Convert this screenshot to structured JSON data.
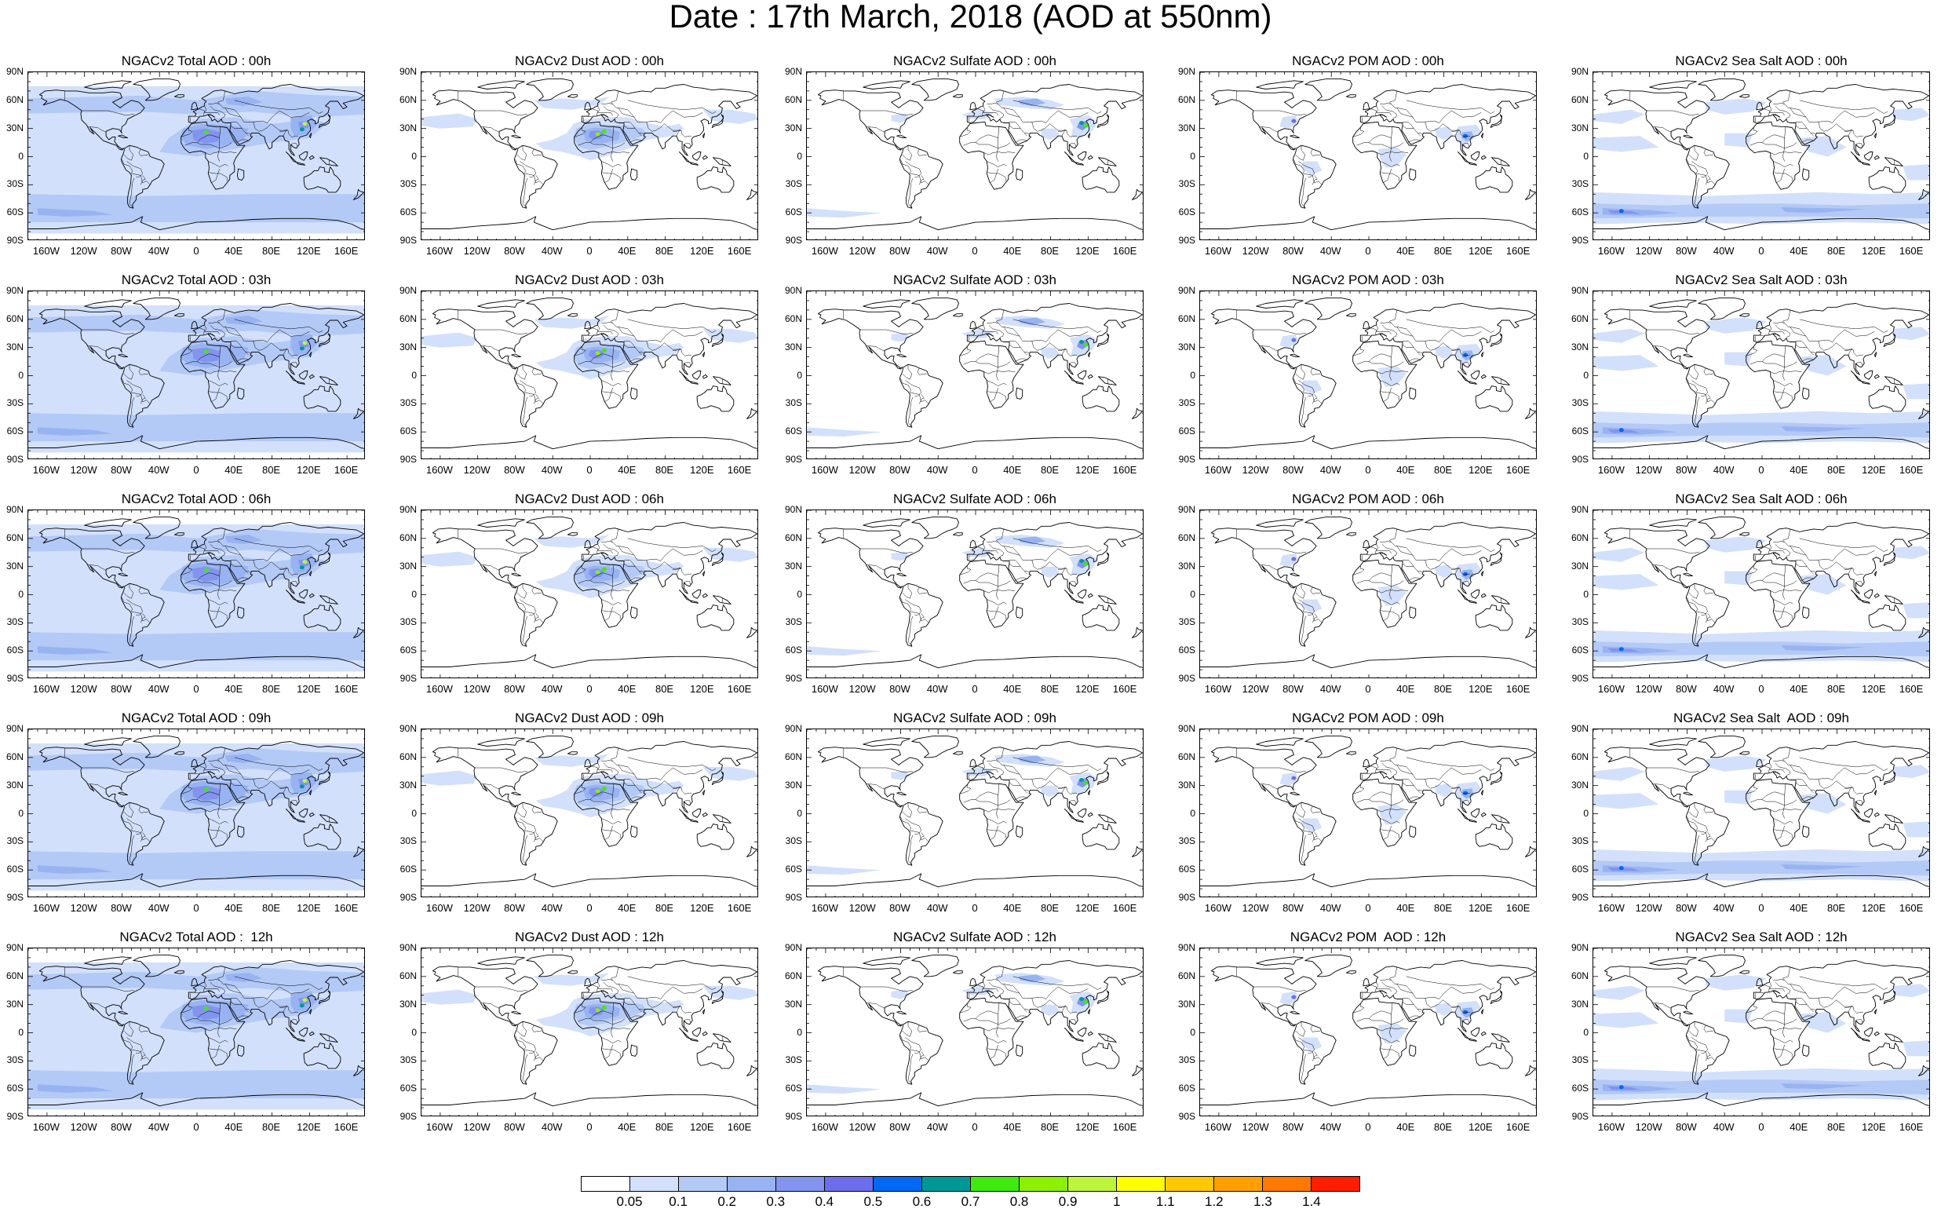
{
  "title": "Date : 17th March, 2018 (AOD at 550nm)",
  "panel_titles": [
    [
      "NGACv2 Total AOD : 00h",
      "NGACv2 Dust AOD : 00h",
      "NGACv2 Sulfate AOD : 00h",
      "NGACv2 POM AOD : 00h",
      "NGACv2 Sea Salt AOD : 00h"
    ],
    [
      "NGACv2 Total AOD : 03h",
      "NGACv2 Dust AOD : 03h",
      "NGACv2 Sulfate AOD : 03h",
      "NGACv2 POM AOD : 03h",
      "NGACv2 Sea Salt AOD : 03h"
    ],
    [
      "NGACv2 Total AOD : 06h",
      "NGACv2 Dust AOD : 06h",
      "NGACv2 Sulfate AOD : 06h",
      "NGACv2 POM AOD : 06h",
      "NGACv2 Sea Salt AOD : 06h"
    ],
    [
      "NGACv2 Total AOD : 09h",
      "NGACv2 Dust AOD : 09h",
      "NGACv2 Sulfate AOD : 09h",
      "NGACv2 POM AOD : 09h",
      "NGACv2 Sea Salt  AOD : 09h"
    ],
    [
      "NGACv2 Total AOD :  12h",
      "NGACv2 Dust AOD : 12h",
      "NGACv2 Sulfate AOD : 12h",
      "NGACv2 POM  AOD : 12h",
      "NGACv2 Sea Salt AOD : 12h"
    ]
  ],
  "lat_ticks": [
    "90N",
    "60N",
    "30N",
    "0",
    "30S",
    "60S",
    "90S"
  ],
  "lon_ticks": [
    "160W",
    "120W",
    "80W",
    "40W",
    "0",
    "40E",
    "80E",
    "120E",
    "160E"
  ],
  "lon_tick_values": [
    -160,
    -120,
    -80,
    -40,
    0,
    40,
    80,
    120,
    160
  ],
  "colorbar": {
    "colors": [
      "#ffffff",
      "#d2e0fb",
      "#b3c9f6",
      "#98b3f1",
      "#8294ee",
      "#6c6eeb",
      "#0068f2",
      "#009896",
      "#41ea0e",
      "#8cf000",
      "#bdf43c",
      "#ffff00",
      "#ffc800",
      "#ffa000",
      "#ff7800",
      "#ff1e00"
    ],
    "labels": [
      "0.05",
      "0.1",
      "0.2",
      "0.3",
      "0.4",
      "0.5",
      "0.6",
      "0.7",
      "0.8",
      "0.9",
      "1",
      "1.1",
      "1.2",
      "1.3",
      "1.4"
    ]
  }
}
